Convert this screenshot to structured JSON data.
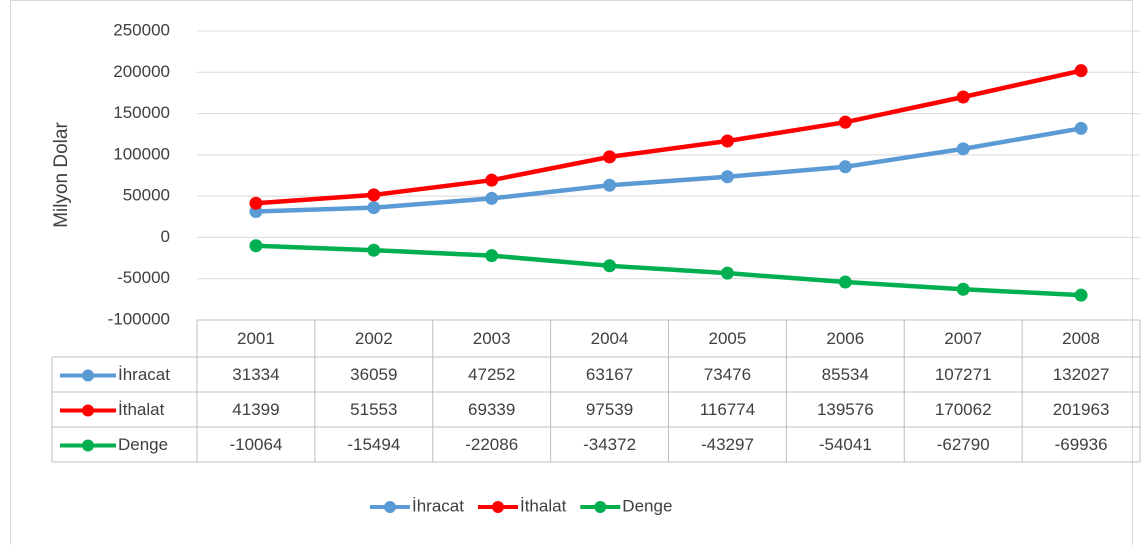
{
  "chart_data": {
    "type": "line",
    "y_label": "Milyon Dolar",
    "categories": [
      "2001",
      "2002",
      "2003",
      "2004",
      "2005",
      "2006",
      "2007",
      "2008"
    ],
    "series": [
      {
        "name": "İhracat",
        "color": "#5b9bd5",
        "values": [
          31334,
          36059,
          47252,
          63167,
          73476,
          85534,
          107271,
          132027
        ]
      },
      {
        "name": "İthalat",
        "color": "#ff0000",
        "values": [
          41399,
          51553,
          69339,
          97539,
          116774,
          139576,
          170062,
          201963
        ]
      },
      {
        "name": "Denge",
        "color": "#00b050",
        "values": [
          -10064,
          -15494,
          -22086,
          -34372,
          -43297,
          -54041,
          -62790,
          -69936
        ]
      }
    ],
    "ylim": [
      -100000,
      250000
    ],
    "yticks": [
      -100000,
      -50000,
      0,
      50000,
      100000,
      150000,
      200000,
      250000
    ],
    "grid": true,
    "data_table": true,
    "legend": "bottom"
  }
}
